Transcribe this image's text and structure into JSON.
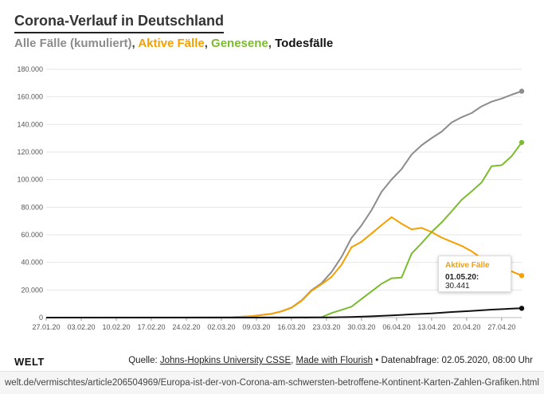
{
  "title": "Corona-Verlauf in Deutschland",
  "subtitle": {
    "all": "Alle Fälle (kumuliert)",
    "active": "Aktive Fälle",
    "recovered": "Genesene",
    "deaths": "Todesfälle",
    "sep": ", "
  },
  "colors": {
    "all": "#8c8c8c",
    "active": "#f5a000",
    "recovered": "#7cbb2f",
    "deaths": "#111111"
  },
  "tooltip": {
    "title": "Aktive Fälle",
    "date": "01.05.20:",
    "value": "30.441"
  },
  "footer": {
    "logo": "WELT",
    "source_prefix": "Quelle: ",
    "source_link": "Johns-Hopkins University CSSE",
    "source_sep": ", ",
    "made_with": "Made with Flourish",
    "date_text": " • Datenabfrage: 02.05.2020, 08:00 Uhr"
  },
  "url": "welt.de/vermischtes/article206504969/Europa-ist-der-von-Corona-am-schwersten-betroffene-Kontinent-Karten-Zahlen-Grafiken.html",
  "chart_data": {
    "type": "line",
    "x_start": "27.01.20",
    "x_end": "01.05.20",
    "x_tick_labels": [
      "27.01.20",
      "03.02.20",
      "10.02.20",
      "17.02.20",
      "24.02.20",
      "02.03.20",
      "09.03.20",
      "16.03.20",
      "23.03.20",
      "30.03.20",
      "06.04.20",
      "13.04.20",
      "20.04.20",
      "27.04.20"
    ],
    "y_tick_labels": [
      "0",
      "20.000",
      "40.000",
      "60.000",
      "80.000",
      "100.000",
      "120.000",
      "140.000",
      "160.000",
      "180.000"
    ],
    "ylim": [
      0,
      180000
    ],
    "grid": true,
    "series": [
      {
        "name": "Alle Fälle (kumuliert)",
        "key": "all",
        "points": [
          [
            "27.01.20",
            0
          ],
          [
            "24.02.20",
            16
          ],
          [
            "29.02.20",
            79
          ],
          [
            "04.03.20",
            262
          ],
          [
            "08.03.20",
            1040
          ],
          [
            "10.03.20",
            1908
          ],
          [
            "12.03.20",
            2745
          ],
          [
            "14.03.20",
            4585
          ],
          [
            "16.03.20",
            7272
          ],
          [
            "18.03.20",
            12327
          ],
          [
            "20.03.20",
            19848
          ],
          [
            "22.03.20",
            24873
          ],
          [
            "24.03.20",
            32986
          ],
          [
            "26.03.20",
            43938
          ],
          [
            "28.03.20",
            57695
          ],
          [
            "30.03.20",
            66885
          ],
          [
            "01.04.20",
            77872
          ],
          [
            "03.04.20",
            91159
          ],
          [
            "05.04.20",
            100123
          ],
          [
            "07.04.20",
            107663
          ],
          [
            "09.04.20",
            118181
          ],
          [
            "11.04.20",
            124908
          ],
          [
            "13.04.20",
            130072
          ],
          [
            "15.04.20",
            134753
          ],
          [
            "17.04.20",
            141397
          ],
          [
            "19.04.20",
            145184
          ],
          [
            "21.04.20",
            148291
          ],
          [
            "23.04.20",
            153129
          ],
          [
            "25.04.20",
            156513
          ],
          [
            "27.04.20",
            158758
          ],
          [
            "29.04.20",
            161539
          ],
          [
            "01.05.20",
            164077
          ]
        ]
      },
      {
        "name": "Aktive Fälle",
        "key": "active",
        "points": [
          [
            "27.01.20",
            0
          ],
          [
            "24.02.20",
            2
          ],
          [
            "29.02.20",
            63
          ],
          [
            "04.03.20",
            244
          ],
          [
            "08.03.20",
            1020
          ],
          [
            "10.03.20",
            1880
          ],
          [
            "12.03.20",
            2700
          ],
          [
            "14.03.20",
            4500
          ],
          [
            "16.03.20",
            7100
          ],
          [
            "18.03.20",
            12000
          ],
          [
            "20.03.20",
            19400
          ],
          [
            "22.03.20",
            24100
          ],
          [
            "24.03.20",
            29500
          ],
          [
            "26.03.20",
            38300
          ],
          [
            "28.03.20",
            51000
          ],
          [
            "30.03.20",
            55000
          ],
          [
            "01.04.20",
            61000
          ],
          [
            "03.04.20",
            67000
          ],
          [
            "05.04.20",
            72800
          ],
          [
            "07.04.20",
            68000
          ],
          [
            "09.04.20",
            64000
          ],
          [
            "11.04.20",
            65000
          ],
          [
            "13.04.20",
            62000
          ],
          [
            "15.04.20",
            58000
          ],
          [
            "17.04.20",
            55000
          ],
          [
            "19.04.20",
            52000
          ],
          [
            "21.04.20",
            48000
          ],
          [
            "23.04.20",
            43000
          ],
          [
            "25.04.20",
            39000
          ],
          [
            "27.04.20",
            36000
          ],
          [
            "29.04.20",
            33500
          ],
          [
            "01.05.20",
            30441
          ]
        ]
      },
      {
        "name": "Genesene",
        "key": "recovered",
        "points": [
          [
            "27.01.20",
            0
          ],
          [
            "22.03.20",
            266
          ],
          [
            "24.03.20",
            3290
          ],
          [
            "26.03.20",
            5600
          ],
          [
            "28.03.20",
            7900
          ],
          [
            "30.03.20",
            13500
          ],
          [
            "01.04.20",
            19000
          ],
          [
            "03.04.20",
            24500
          ],
          [
            "05.04.20",
            28500
          ],
          [
            "07.04.20",
            29000
          ],
          [
            "09.04.20",
            46300
          ],
          [
            "11.04.20",
            53900
          ],
          [
            "13.04.20",
            62000
          ],
          [
            "15.04.20",
            69000
          ],
          [
            "17.04.20",
            77000
          ],
          [
            "19.04.20",
            85400
          ],
          [
            "21.04.20",
            91500
          ],
          [
            "23.04.20",
            98000
          ],
          [
            "25.04.20",
            109800
          ],
          [
            "27.04.20",
            110500
          ],
          [
            "29.04.20",
            117000
          ],
          [
            "01.05.20",
            126900
          ]
        ]
      },
      {
        "name": "Todesfälle",
        "key": "deaths",
        "points": [
          [
            "27.01.20",
            0
          ],
          [
            "09.03.20",
            2
          ],
          [
            "16.03.20",
            17
          ],
          [
            "20.03.20",
            67
          ],
          [
            "24.03.20",
            157
          ],
          [
            "28.03.20",
            433
          ],
          [
            "01.04.20",
            931
          ],
          [
            "05.04.20",
            1584
          ],
          [
            "09.04.20",
            2349
          ],
          [
            "13.04.20",
            3022
          ],
          [
            "17.04.20",
            4052
          ],
          [
            "21.04.20",
            4862
          ],
          [
            "25.04.20",
            5760
          ],
          [
            "29.04.20",
            6467
          ],
          [
            "01.05.20",
            6736
          ]
        ]
      }
    ]
  }
}
